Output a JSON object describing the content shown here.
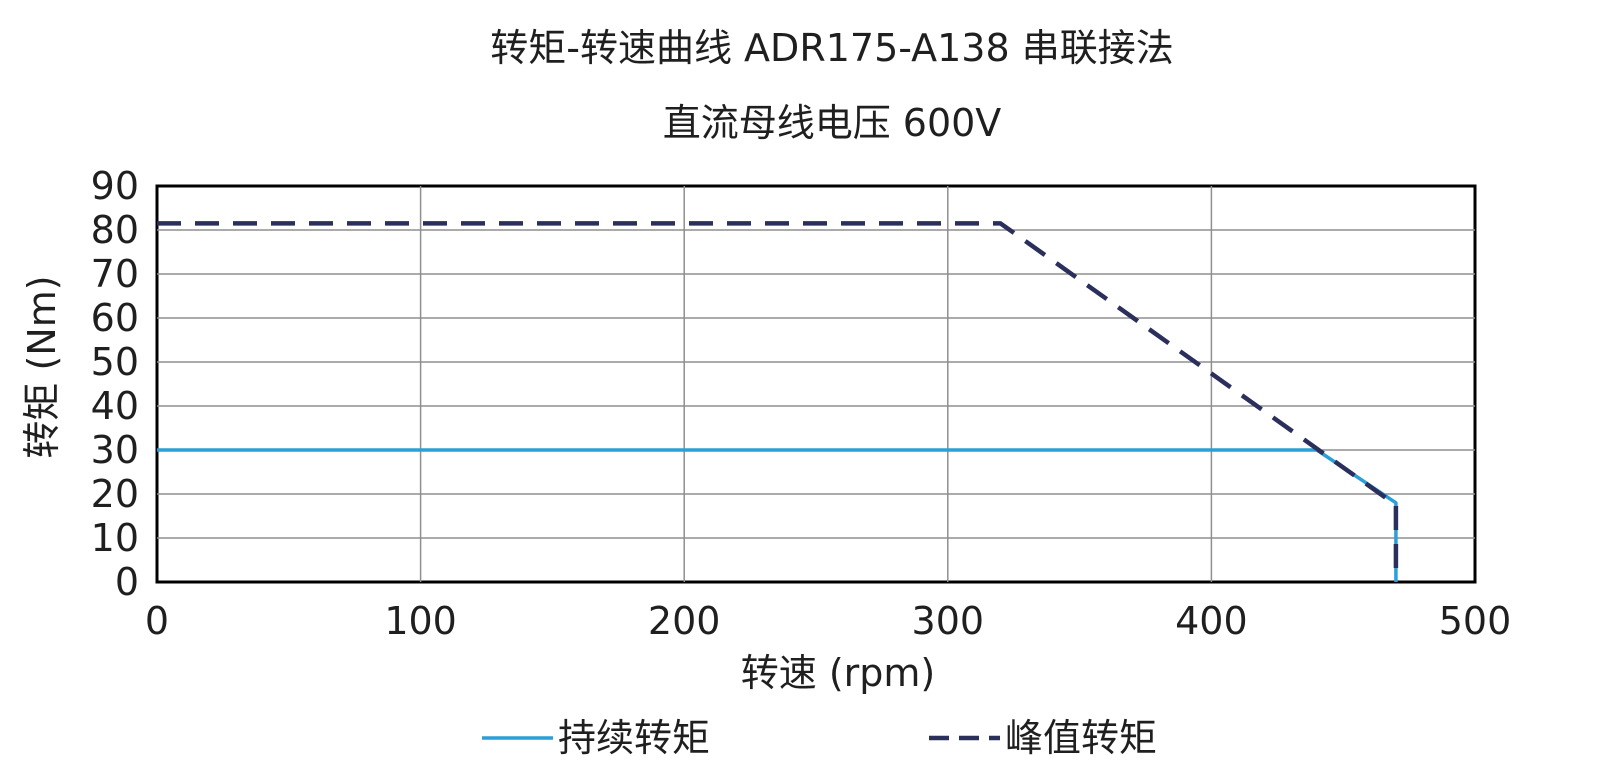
{
  "chart_data": {
    "type": "line",
    "title": "转矩-转速曲线 ADR175-A138 串联接法",
    "subtitle": "直流母线电压 600V",
    "xlabel": "转速 (rpm)",
    "ylabel": "转矩 (Nm)",
    "xlim": [
      0,
      500
    ],
    "ylim": [
      0,
      90
    ],
    "x_ticks": [
      "0",
      "100",
      "200",
      "300",
      "400",
      "500"
    ],
    "y_ticks": [
      "0",
      "10",
      "20",
      "30",
      "40",
      "50",
      "60",
      "70",
      "80",
      "90"
    ],
    "grid": true,
    "legend_position": "bottom",
    "series": [
      {
        "name": "持续转矩",
        "style": "solid",
        "color": "#2a9fd8",
        "points": [
          {
            "x": 0,
            "y": 30
          },
          {
            "x": 440,
            "y": 30
          },
          {
            "x": 470,
            "y": 18
          },
          {
            "x": 470,
            "y": 0
          }
        ]
      },
      {
        "name": "峰值转矩",
        "style": "dashed",
        "color": "#2b2f5b",
        "points": [
          {
            "x": 0,
            "y": 81.5
          },
          {
            "x": 320,
            "y": 81.5
          },
          {
            "x": 470,
            "y": 17.5
          },
          {
            "x": 470,
            "y": 0
          }
        ]
      }
    ]
  }
}
